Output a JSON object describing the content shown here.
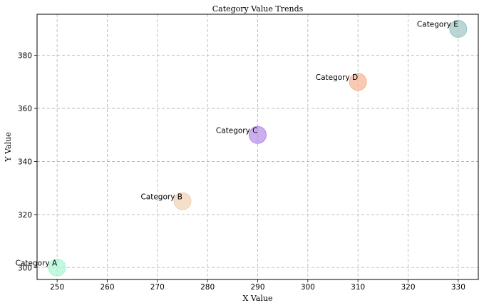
{
  "chart_data": {
    "type": "scatter",
    "title": "Category Value Trends",
    "xlabel": "X Value",
    "ylabel": "Y Value",
    "xlim": [
      246,
      334
    ],
    "ylim": [
      295.5,
      395.5
    ],
    "xticks": [
      250,
      260,
      270,
      280,
      290,
      300,
      310,
      320,
      330
    ],
    "yticks": [
      300,
      320,
      340,
      360,
      380
    ],
    "grid": true,
    "points": [
      {
        "label": "Category A",
        "x": 250,
        "y": 300,
        "color": "#a9f5d4"
      },
      {
        "label": "Category B",
        "x": 275,
        "y": 325,
        "color": "#f0d2b4"
      },
      {
        "label": "Category C",
        "x": 290,
        "y": 350,
        "color": "#b68ce8"
      },
      {
        "label": "Category D",
        "x": 310,
        "y": 370,
        "color": "#f5b494"
      },
      {
        "label": "Category E",
        "x": 330,
        "y": 390,
        "color": "#9cc5c5"
      }
    ]
  }
}
